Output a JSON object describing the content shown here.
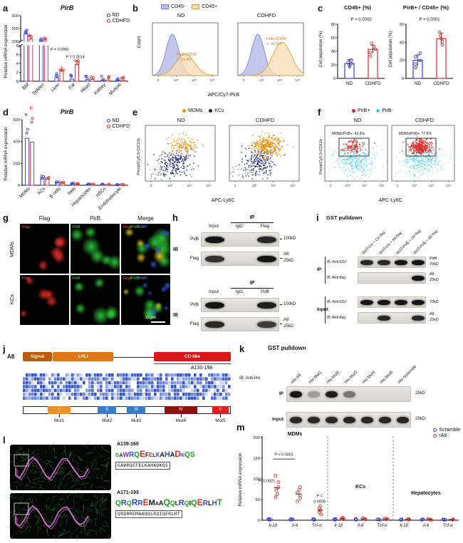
{
  "colors": {
    "nd": "#3939d8",
    "cdhfd": "#d83030",
    "mdm": "#e8920c",
    "kc": "#151c6e",
    "pirb_pos": "#e02020",
    "pirb_neg": "#45cbe0",
    "cd45neg_fill": "#b9bde9",
    "cd45neg_line": "#7a7fd0",
    "cd45pos_fill": "#f7ddb5",
    "cd45pos_line": "#e09a30",
    "annot_orange": "#d3820f"
  },
  "flow_xticks": [
    "0",
    "10³",
    "10⁴",
    "10⁵"
  ],
  "panel_a": {
    "label": "a",
    "title": "PirB",
    "ylabel": "Relative mRNA expression",
    "legend": [
      {
        "name": "ND"
      },
      {
        "name": "CDHFD"
      }
    ],
    "chart_data": {
      "type": "bar",
      "categories": [
        "BM",
        "Spleen",
        "Liver",
        "Fat",
        "Heart",
        "Kidney",
        "Muscle"
      ],
      "series": [
        {
          "name": "ND",
          "values": [
            160,
            100,
            0.8,
            0.5,
            0.35,
            0.25,
            0.2
          ]
        },
        {
          "name": "CDHFD",
          "values": [
            118,
            92,
            2.4,
            3.8,
            0.4,
            0.3,
            0.2
          ]
        }
      ],
      "yticks_low": [
        0,
        2,
        4,
        6,
        8
      ],
      "yticks_high": [
        100,
        200,
        300
      ],
      "annotations": [
        {
          "text": "P = 0.0991",
          "cat": 2
        },
        {
          "text": "P = 0.0014",
          "cat": 3
        }
      ]
    }
  },
  "panel_b": {
    "label": "b",
    "legend": [
      {
        "name": "CD45-"
      },
      {
        "name": "CD45+"
      }
    ],
    "ylabel": "Count",
    "xlabel": "APC/Cy7-PirB",
    "plots": [
      {
        "title": "ND",
        "annotation": "PirB+/CD45+: 19.4%",
        "shift": 0.1,
        "pos_amp": 0.55
      },
      {
        "title": "CDHFD",
        "annotation": "PirB+/CD45+: 40.6%",
        "shift": 0.26,
        "pos_amp": 0.85
      }
    ]
  },
  "panel_c": {
    "label": "c",
    "charts": [
      {
        "title": "CD45+ (%)",
        "p": "P = 0.0002",
        "ylabel": "Cell population (%)",
        "chart_data": {
          "type": "bar",
          "categories": [
            "ND",
            "CDHFD"
          ],
          "values": [
            22,
            43
          ],
          "dots": [
            [
              17,
              20,
              22,
              24,
              27
            ],
            [
              33,
              38,
              43,
              47,
              52
            ]
          ],
          "yticks": [
            0,
            20,
            40,
            60,
            80
          ]
        }
      },
      {
        "title": "PirB+ / CD45+ (%)",
        "p": "P = 0.0001",
        "ylabel": "Cell population (%)",
        "chart_data": {
          "type": "bar",
          "categories": [
            "ND",
            "CDHFD"
          ],
          "values": [
            20,
            44
          ],
          "dots": [
            [
              12,
              16,
              20,
              24,
              28
            ],
            [
              37,
              41,
              44,
              47,
              51
            ]
          ],
          "yticks": [
            0,
            20,
            40,
            60
          ]
        }
      }
    ]
  },
  "panel_d": {
    "label": "d",
    "title": "PirB",
    "ylabel": "Relative mRNA expression",
    "legend": [
      {
        "name": "ND"
      },
      {
        "name": "CDHFD"
      }
    ],
    "chart_data": {
      "type": "bar",
      "categories": [
        "MDMs",
        "KCs",
        "B cells",
        "Nets",
        "Hepatocytes",
        "HSCs",
        "Endotheliocyte"
      ],
      "series": [
        {
          "name": "ND",
          "values": [
            430,
            65,
            25,
            15,
            10,
            8,
            5
          ]
        },
        {
          "name": "CDHFD",
          "values": [
            395,
            58,
            22,
            13,
            9,
            7,
            5
          ]
        }
      ],
      "yticks": [
        0,
        200,
        400,
        600
      ]
    }
  },
  "panel_e": {
    "label": "e",
    "legend": [
      {
        "name": "MDMs"
      },
      {
        "name": "KCs"
      }
    ],
    "ylabel": "Percp/Cy5.5-CD11b",
    "xlabel": "APC-Ly6C",
    "plots": [
      {
        "title": "ND",
        "mdm_n": 120
      },
      {
        "title": "CDHFD",
        "mdm_n": 300
      }
    ]
  },
  "panel_f": {
    "label": "f",
    "legend": [
      {
        "name": "PirB+"
      },
      {
        "name": "PirB-"
      }
    ],
    "ylabel": "Percp/Cy5.5-CD11b",
    "xlabel": "APC-Ly6C",
    "plots": [
      {
        "title": "ND",
        "gate_label": "MDMs/PirB+: 43.8%",
        "pos_n": 100
      },
      {
        "title": "CDHFD",
        "gate_label": "MDMs/PirB+: 77.5%",
        "pos_n": 280
      }
    ]
  },
  "panel_g": {
    "label": "g",
    "col_headers": [
      "Flag",
      "PirB",
      "Merge"
    ],
    "row_labels": [
      "MDMs",
      "KCs"
    ],
    "overlay_flag": "Flag",
    "overlay_pirb": "PirB",
    "overlay_merge": [
      "Flag",
      "PirB",
      "DAPI"
    ],
    "scalebar": "10 μm"
  },
  "panel_h": {
    "label": "h",
    "blocks": [
      {
        "ip": "IP",
        "ib": "IB",
        "cols": [
          "Input",
          "IgG",
          "Flag"
        ],
        "rows": [
          {
            "name": "PirB",
            "markers": [
              "100kD"
            ],
            "bands": [
              1,
              0,
              0.9
            ]
          },
          {
            "name": "Flag",
            "markers": [
              "A8",
              "25kD"
            ],
            "bands": [
              0.85,
              0,
              1
            ]
          }
        ]
      },
      {
        "ip": "IP",
        "ib": "IB",
        "cols": [
          "Input",
          "IgG",
          "PirB"
        ],
        "rows": [
          {
            "name": "PirB",
            "markers": [
              "100kD"
            ],
            "bands": [
              1,
              0,
              0.95
            ]
          },
          {
            "name": "Flag",
            "markers": [
              "A8",
              "25kD"
            ],
            "bands": [
              0.9,
              0,
              0.8
            ]
          }
        ]
      }
    ]
  },
  "panel_i": {
    "label": "i",
    "title": "GST pulldown",
    "lanes": [
      "GST-Ctr + Ctr-flag",
      "GST-Ctr + A8-flag",
      "GST-PirB + Ctr-flag",
      "GST-PirB + A8-flag"
    ],
    "sections": [
      {
        "name": "IP",
        "rows": [
          {
            "ib": "IB: Anti-GST",
            "markers": [
              "PirB",
              "70kD"
            ],
            "bands": [
              0.9,
              0.9,
              1,
              1
            ]
          },
          {
            "ib": "IB: Anti-flag",
            "markers": [
              "A8",
              "25kD"
            ],
            "bands": [
              0,
              0,
              0,
              1
            ]
          }
        ]
      },
      {
        "name": "Input",
        "rows": [
          {
            "ib": "IB: Anti-GST",
            "markers": [
              "70kD"
            ],
            "bands": [
              1,
              1,
              1,
              1
            ]
          },
          {
            "ib": "IB: Anti-flag",
            "markers": [
              "A8",
              "25kD"
            ],
            "bands": [
              0,
              0.9,
              0,
              0.9
            ]
          }
        ]
      }
    ]
  },
  "panel_j": {
    "label": "j",
    "protein": "A8",
    "domains": [
      {
        "name": "Signal",
        "color": "#b85c12",
        "x": 0.0,
        "w": 0.14
      },
      {
        "name": "LPLi",
        "color": "#e07818",
        "x": 0.145,
        "w": 0.29
      },
      {
        "name": "CC-like",
        "color": "#d81818",
        "x": 0.63,
        "w": 0.37
      }
    ],
    "region_label": "A130-198",
    "mutants": [
      {
        "name": "Mut1",
        "roman": "I",
        "color": "#e8922a",
        "x": 0.12,
        "w": 0.11
      },
      {
        "name": "Mut2",
        "roman": "II",
        "color": "#3a7ac8",
        "x": 0.36,
        "w": 0.09
      },
      {
        "name": "Mut3",
        "roman": "III",
        "color": "#3a7ac8",
        "x": 0.5,
        "w": 0.09
      },
      {
        "name": "Mut4",
        "roman": "IV",
        "color": "#8c1212",
        "x": 0.68,
        "w": 0.16
      },
      {
        "name": "Mut5",
        "roman": "V",
        "color": "#d82020",
        "x": 0.91,
        "w": 0.08
      }
    ]
  },
  "panel_k": {
    "label": "k",
    "title": "GST pulldown",
    "ib": "IB: Anti-His",
    "lanes": [
      "His-A8",
      "His-Mut1",
      "His-Mut2",
      "His-Mut3",
      "His-Mut4",
      "His-Mut5",
      "His-Scramble"
    ],
    "rows": [
      {
        "name": "IP",
        "marker": "25kD",
        "bands": [
          1,
          0.3,
          0.95,
          0.5,
          0,
          0,
          0
        ]
      },
      {
        "name": "Input",
        "marker": "25kD",
        "bands": [
          0.9,
          0.9,
          0.9,
          0.9,
          0.9,
          0.9,
          0.9
        ]
      }
    ]
  },
  "panel_l": {
    "label": "l",
    "logos": [
      {
        "region": "A139-160",
        "seq": "GAWRQEFELKAHADKQS",
        "plain": "GAWRQEFELKAHADKQS"
      },
      {
        "region": "A171-193",
        "seq": "QRQRREMAAQQLRQIQERLHT",
        "plain": "QRQRREMAAQQLRQIQERLHT"
      }
    ]
  },
  "panel_m": {
    "label": "m",
    "ylabel": "Relative mRNA expression",
    "legend": [
      {
        "name": "Scramble"
      },
      {
        "name": "rA8"
      }
    ],
    "chart_data": {
      "type": "scatter",
      "yticks": [
        0,
        50,
        100,
        150,
        200
      ],
      "groups": [
        {
          "name": "MDMs",
          "genes": [
            "Il-1β",
            "Il-6",
            "Tnf-α"
          ],
          "scramble": [
            [
              1,
              2,
              2,
              3,
              2
            ],
            [
              1,
              2,
              3,
              2,
              2
            ],
            [
              1,
              1,
              2,
              2,
              3
            ]
          ],
          "rA8": [
            [
              55,
              63,
              72,
              80,
              92,
              108
            ],
            [
              46,
              54,
              60,
              67,
              74,
              80
            ],
            [
              14,
              19,
              24,
              29,
              34
            ]
          ],
          "p": [
            "P<0.0001",
            "P < 0.0001",
            "P = 0.0009"
          ]
        },
        {
          "name": "KCs",
          "genes": [
            "Il-1β",
            "Il-6",
            "Tnf-α"
          ],
          "scramble": [
            [
              1,
              2,
              2,
              3
            ],
            [
              1,
              2,
              3
            ],
            [
              1,
              2,
              2
            ]
          ],
          "rA8": [
            [
              2,
              3,
              4,
              6
            ],
            [
              2,
              3,
              5
            ],
            [
              2,
              3,
              4
            ]
          ]
        },
        {
          "name": "Hepatocytes",
          "genes": [
            "Il-1β",
            "Il-6",
            "Tnf-α"
          ],
          "scramble": [
            [
              1,
              1,
              2
            ],
            [
              1,
              2,
              2
            ],
            [
              1,
              1,
              2
            ]
          ],
          "rA8": [
            [
              1,
              2,
              3
            ],
            [
              1,
              2,
              3
            ],
            [
              1,
              2,
              2
            ]
          ]
        }
      ]
    }
  }
}
